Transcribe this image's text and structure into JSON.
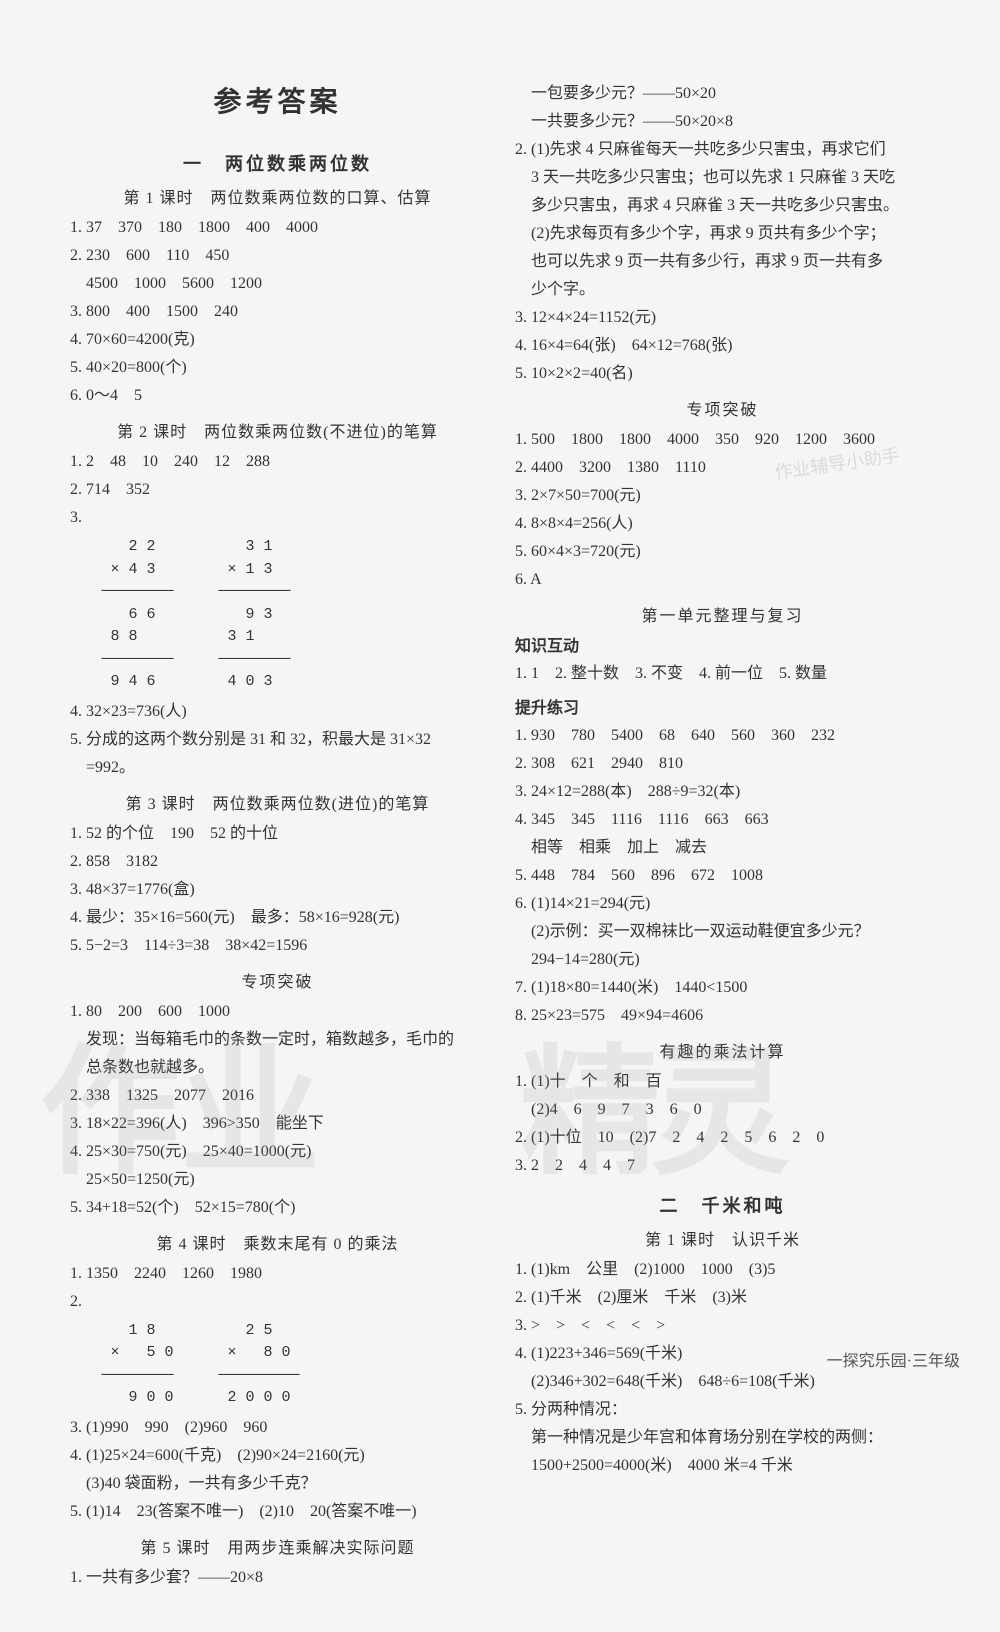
{
  "title": "参考答案",
  "footer": "一探究乐园·三年级",
  "watermarks": {
    "w1": "作业",
    "w2": "精灵"
  },
  "stamp": "作业辅导小助手",
  "left": {
    "chapter1": "一　两位数乘两位数",
    "lesson1_title": "第 1 课时　两位数乘两位数的口算、估算",
    "l1_1": "1. 37　370　180　1800　400　4000",
    "l1_2": "2. 230　600　110　450",
    "l1_2b": "　4500　1000　5600　1200",
    "l1_3": "3. 800　400　1500　240",
    "l1_4": "4. 70×60=4200(克)",
    "l1_5": "5. 40×20=800(个)",
    "l1_6": "6. 0～4　5",
    "lesson2_title": "第 2 课时　两位数乘两位数(不进位)的笔算",
    "l2_1": "1. 2　48　10　240　12　288",
    "l2_2": "2. 714　352",
    "l2_3": "3.",
    "l2_3_calc": "    2 2          3 1\n  × 4 3        × 1 3\n ────────     ────────\n    6 6          9 3\n  8 8          3 1\n ────────     ────────\n  9 4 6        4 0 3",
    "l2_4": "4. 32×23=736(人)",
    "l2_5": "5. 分成的这两个数分别是 31 和 32，积最大是 31×32",
    "l2_5b": "　=992。",
    "lesson3_title": "第 3 课时　两位数乘两位数(进位)的笔算",
    "l3_1": "1. 52 的个位　190　52 的十位",
    "l3_2": "2. 858　3182",
    "l3_3": "3. 48×37=1776(盒)",
    "l3_4": "4. 最少：35×16=560(元)　最多：58×16=928(元)",
    "l3_5": "5. 5−2=3　114÷3=38　38×42=1596",
    "section_sp1": "专项突破",
    "sp1_1": "1. 80　200　600　1000",
    "sp1_1b": "　发现：当每箱毛巾的条数一定时，箱数越多，毛巾的",
    "sp1_1c": "　总条数也就越多。",
    "sp1_2": "2. 338　1325　2077　2016",
    "sp1_3": "3. 18×22=396(人)　396>350　能坐下",
    "sp1_4": "4. 25×30=750(元)　25×40=1000(元)",
    "sp1_4b": "　25×50=1250(元)",
    "sp1_5": "5. 34+18=52(个)　52×15=780(个)",
    "lesson4_title": "第 4 课时　乘数末尾有 0 的乘法",
    "l4_1": "1. 1350　2240　1260　1980",
    "l4_2": "2.",
    "l4_2_calc": "    1 8          2 5\n  ×   5 0      ×   8 0\n ────────     ─────────\n    9 0 0      2 0 0 0",
    "l4_3": "3. (1)990　990　(2)960　960",
    "l4_4": "4. (1)25×24=600(千克)　(2)90×24=2160(元)",
    "l4_4b": "　(3)40 袋面粉，一共有多少千克？",
    "l4_5": "5. (1)14　23(答案不唯一)　(2)10　20(答案不唯一)",
    "lesson5_title": "第 5 课时　用两步连乘解决实际问题",
    "l5_1": "1. 一共有多少套？——20×8"
  },
  "right": {
    "r1": "　一包要多少元？——50×20",
    "r2": "　一共要多少元？——50×20×8",
    "r3": "2. (1)先求 4 只麻雀每天一共吃多少只害虫，再求它们",
    "r3b": "　3 天一共吃多少只害虫；也可以先求 1 只麻雀 3 天吃",
    "r3c": "　多少只害虫，再求 4 只麻雀 3 天一共吃多少只害虫。",
    "r3d": "　(2)先求每页有多少个字，再求 9 页共有多少个字；",
    "r3e": "　也可以先求 9 页一共有多少行，再求 9 页一共有多",
    "r3f": "　少个字。",
    "r4": "3. 12×4×24=1152(元)",
    "r5": "4. 16×4=64(张)　64×12=768(张)",
    "r6": "5. 10×2×2=40(名)",
    "section_sp2": "专项突破",
    "sp2_1": "1. 500　1800　1800　4000　350　920　1200　3600",
    "sp2_2": "2. 4400　3200　1380　1110",
    "sp2_3": "3. 2×7×50=700(元)",
    "sp2_4": "4. 8×8×4=256(人)",
    "sp2_5": "5. 60×4×3=720(元)",
    "sp2_6": "6. A",
    "section_review": "第一单元整理与复习",
    "sub_zhishi": "知识互动",
    "zs_1": "1. 1　2. 整十数　3. 不变　4. 前一位　5. 数量",
    "sub_tisheng": "提升练习",
    "ts_1": "1. 930　780　5400　68　640　560　360　232",
    "ts_2": "2. 308　621　2940　810",
    "ts_3": "3. 24×12=288(本)　288÷9=32(本)",
    "ts_4": "4. 345　345　1116　1116　663　663",
    "ts_4b": "　相等　相乘　加上　减去",
    "ts_5": "5. 448　784　560　896　672　1008",
    "ts_6": "6. (1)14×21=294(元)",
    "ts_6b": "　(2)示例：买一双棉袜比一双运动鞋便宜多少元？",
    "ts_6c": "　294−14=280(元)",
    "ts_7": "7. (1)18×80=1440(米)　1440<1500",
    "ts_8": "8. 25×23=575　49×94=4606",
    "section_fun": "有趣的乘法计算",
    "fun_1": "1. (1)十　个　和　百",
    "fun_1b": "　(2)4　6　9　7　3　6　0",
    "fun_2": "2. (1)十位　10　(2)7　2　4　2　5　6　2　0",
    "fun_3": "3. 2　2　4　4　7",
    "chapter2": "二　千米和吨",
    "lesson_km1": "第 1 课时　认识千米",
    "km_1": "1. (1)km　公里　(2)1000　1000　(3)5",
    "km_2": "2. (1)千米　(2)厘米　千米　(3)米",
    "km_3": "3. >　>　<　<　<　>",
    "km_4": "4. (1)223+346=569(千米)",
    "km_4b": "　(2)346+302=648(千米)　648÷6=108(千米)",
    "km_5": "5. 分两种情况：",
    "km_5b": "　第一种情况是少年宫和体育场分别在学校的两侧：",
    "km_5c": "　1500+2500=4000(米)　4000 米=4 千米"
  }
}
